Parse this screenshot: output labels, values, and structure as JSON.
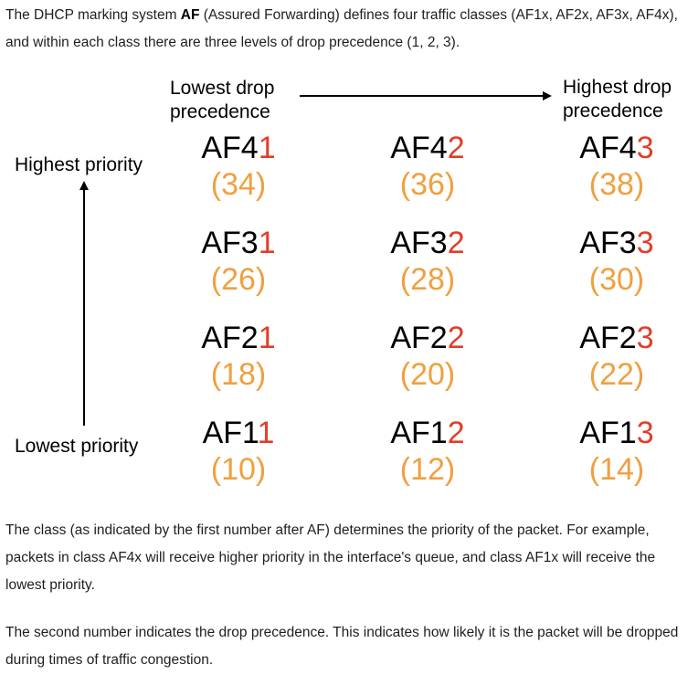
{
  "intro": {
    "before": "The DHCP marking system ",
    "bold": "AF",
    "after": " (Assured Forwarding) defines four traffic classes (AF1x, AF2x, AF3x, AF4x), and within each class there are three levels of drop precedence (1, 2, 3)."
  },
  "diagram": {
    "lowest_drop_line1": "Lowest drop",
    "lowest_drop_line2": "precedence",
    "highest_drop_line1": "Highest drop",
    "highest_drop_line2": "precedence",
    "highest_priority": "Highest priority",
    "lowest_priority": "Lowest priority",
    "rows": [
      [
        {
          "prefix": "AF4",
          "digit": "1",
          "dscp": "(34)"
        },
        {
          "prefix": "AF4",
          "digit": "2",
          "dscp": "(36)"
        },
        {
          "prefix": "AF4",
          "digit": "3",
          "dscp": "(38)"
        }
      ],
      [
        {
          "prefix": "AF3",
          "digit": "1",
          "dscp": "(26)"
        },
        {
          "prefix": "AF3",
          "digit": "2",
          "dscp": "(28)"
        },
        {
          "prefix": "AF3",
          "digit": "3",
          "dscp": "(30)"
        }
      ],
      [
        {
          "prefix": "AF2",
          "digit": "1",
          "dscp": "(18)"
        },
        {
          "prefix": "AF2",
          "digit": "2",
          "dscp": "(20)"
        },
        {
          "prefix": "AF2",
          "digit": "3",
          "dscp": "(22)"
        }
      ],
      [
        {
          "prefix": "AF1",
          "digit": "1",
          "dscp": "(10)"
        },
        {
          "prefix": "AF1",
          "digit": "2",
          "dscp": "(12)"
        },
        {
          "prefix": "AF1",
          "digit": "3",
          "dscp": "(14)"
        }
      ]
    ],
    "colors": {
      "class_text": "#000000",
      "drop_digit": "#e23d28",
      "dscp_value": "#f0a040"
    }
  },
  "class_paragraph": "The class (as indicated by the first number after AF) determines the priority of the packet. For example, packets in class AF4x will receive higher priority in the interface's queue, and class AF1x will receive the lowest priority.",
  "drop_paragraph": "The second number indicates the drop precedence. This indicates how likely it is the packet will be dropped during times of traffic congestion."
}
